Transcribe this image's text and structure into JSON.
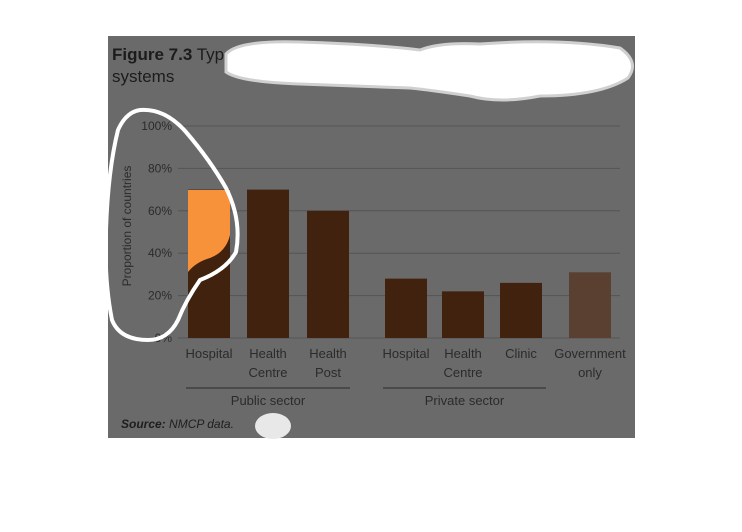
{
  "figure": {
    "title_prefix": "Figure 7.3",
    "title_text": "Types of health facility covered by malaria surveillance systems",
    "source_label": "Source:",
    "source_text": "NMCP data."
  },
  "colors": {
    "panel": "#6a6a6a",
    "bar_public": "#40220f",
    "bar_private": "#40220f",
    "bar_government": "#5a4030",
    "highlight": "#f7913a",
    "text": "#2b2b2b",
    "grid": "#555555"
  },
  "chart_data": {
    "type": "bar",
    "ylabel": "Proportion of countries",
    "ylim": [
      0,
      100
    ],
    "yticks": [
      "0%",
      "20%",
      "40%",
      "60%",
      "80%",
      "100%"
    ],
    "categories": [
      {
        "label": [
          "Hospital"
        ],
        "group": "Public sector",
        "value": 70
      },
      {
        "label": [
          "Health",
          "Centre"
        ],
        "group": "Public sector",
        "value": 70
      },
      {
        "label": [
          "Health",
          "Post"
        ],
        "group": "Public sector",
        "value": 60
      },
      {
        "label": [
          "Hospital"
        ],
        "group": "Private sector",
        "value": 28
      },
      {
        "label": [
          "Health",
          "Centre"
        ],
        "group": "Private sector",
        "value": 22
      },
      {
        "label": [
          "Clinic"
        ],
        "group": "Private sector",
        "value": 26
      },
      {
        "label": [
          "Government",
          "only"
        ],
        "group": "",
        "value": 31
      }
    ],
    "groups": [
      "Public sector",
      "Private sector"
    ],
    "grid": true
  }
}
